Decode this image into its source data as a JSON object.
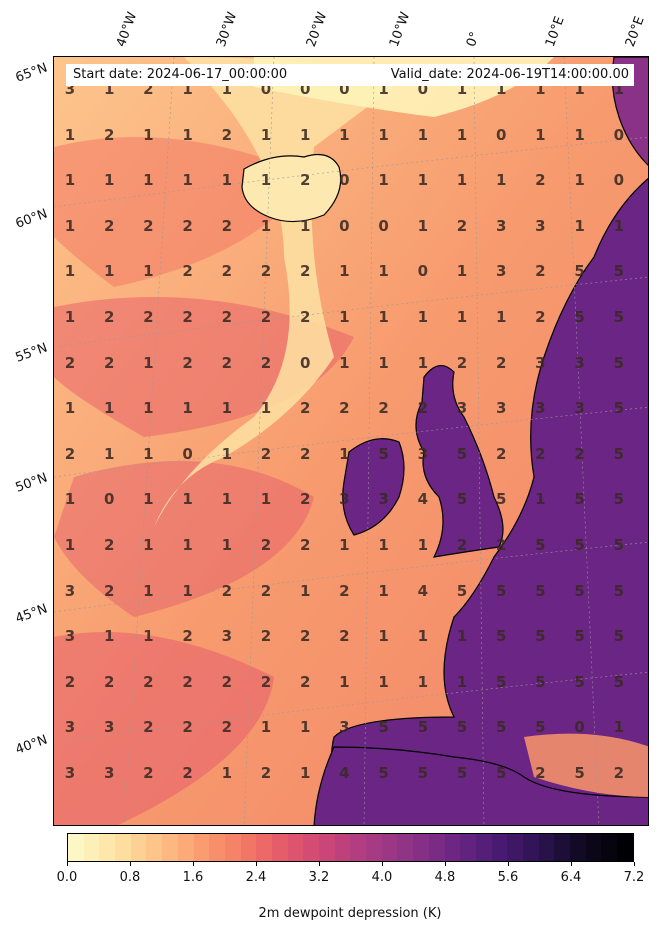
{
  "header": {
    "start_date": "Start date: 2024-06-17_00:00:00",
    "valid_date": "Valid_date: 2024-06-19T14:00:00.00"
  },
  "longitude_labels": [
    "40°W",
    "30°W",
    "20°W",
    "10°W",
    "0°",
    "10°E",
    "20°E"
  ],
  "latitude_labels": [
    "65°N",
    "60°N",
    "55°N",
    "50°N",
    "45°N",
    "40°N"
  ],
  "grid_values": [
    [
      "3",
      "1",
      "2",
      "1",
      "1",
      "0",
      "0",
      "0",
      "1",
      "0",
      "1",
      "1",
      "1",
      "1"
    ],
    [
      "1",
      "2",
      "1",
      "1",
      "2",
      "1",
      "1",
      "1",
      "1",
      "1",
      "1",
      "0",
      "1",
      "1"
    ],
    [
      "1",
      "1",
      "1",
      "1",
      "1",
      "1",
      "2",
      "0",
      "1",
      "1",
      "1",
      "1",
      "2",
      "1"
    ],
    [
      "1",
      "2",
      "2",
      "2",
      "2",
      "1",
      "1",
      "0",
      "0",
      "1",
      "2",
      "3",
      "3",
      "1"
    ],
    [
      "1",
      "1",
      "1",
      "2",
      "2",
      "2",
      "2",
      "1",
      "1",
      "0",
      "1",
      "3",
      "2",
      "5"
    ],
    [
      "1",
      "2",
      "2",
      "2",
      "2",
      "2",
      "2",
      "1",
      "1",
      "1",
      "1",
      "1",
      "2",
      "5"
    ],
    [
      "2",
      "2",
      "1",
      "2",
      "2",
      "2",
      "0",
      "1",
      "1",
      "1",
      "2",
      "2",
      "3",
      "3"
    ],
    [
      "1",
      "1",
      "1",
      "1",
      "1",
      "1",
      "2",
      "2",
      "2",
      "2",
      "3",
      "3",
      "3",
      "3"
    ],
    [
      "2",
      "1",
      "1",
      "0",
      "1",
      "2",
      "2",
      "1",
      "5",
      "3",
      "5",
      "2",
      "2",
      "2"
    ],
    [
      "1",
      "0",
      "1",
      "1",
      "1",
      "1",
      "2",
      "3",
      "3",
      "4",
      "5",
      "5",
      "1",
      "5"
    ],
    [
      "1",
      "2",
      "1",
      "1",
      "1",
      "2",
      "2",
      "1",
      "1",
      "1",
      "2",
      "2",
      "5",
      "5"
    ],
    [
      "3",
      "2",
      "1",
      "1",
      "2",
      "2",
      "1",
      "2",
      "1",
      "4",
      "5",
      "5",
      "5",
      "5"
    ],
    [
      "3",
      "1",
      "1",
      "2",
      "3",
      "2",
      "2",
      "2",
      "1",
      "1",
      "1",
      "5",
      "5",
      "5"
    ],
    [
      "2",
      "2",
      "2",
      "2",
      "2",
      "2",
      "2",
      "1",
      "1",
      "1",
      "1",
      "5",
      "5",
      "5"
    ],
    [
      "3",
      "3",
      "2",
      "2",
      "2",
      "1",
      "1",
      "3",
      "5",
      "5",
      "5",
      "5",
      "5",
      "0"
    ],
    [
      "3",
      "3",
      "2",
      "2",
      "1",
      "2",
      "1",
      "4",
      "5",
      "5",
      "5",
      "5",
      "2",
      "5"
    ]
  ],
  "grid_last_column": [
    "1",
    "0",
    "0",
    "1",
    "5",
    "5",
    "5",
    "5",
    "5",
    "5",
    "5",
    "5",
    "5",
    "5",
    "1",
    "2"
  ],
  "colorbar": {
    "label": "2m dewpoint depression (K)",
    "ticks": [
      "0.0",
      "0.8",
      "1.6",
      "2.4",
      "3.2",
      "4.0",
      "4.8",
      "5.6",
      "6.4",
      "7.2"
    ],
    "min": 0.0,
    "max": 7.2,
    "colormap": "magma_r",
    "colors": [
      "#fcf7c4",
      "#fde2a3",
      "#fdc086",
      "#fb9b6f",
      "#f37964",
      "#e3576b",
      "#c94479",
      "#a83a83",
      "#8a3287",
      "#6b2584",
      "#4a1a73",
      "#2b1350",
      "#100a1f",
      "#000004"
    ]
  }
}
